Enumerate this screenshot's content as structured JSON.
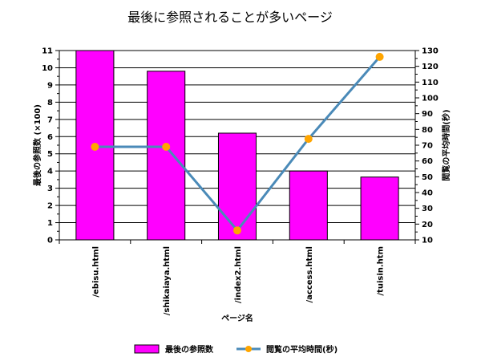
{
  "chart_data": {
    "type": "bar",
    "title": "最後に参照されることが多いページ",
    "xlabel": "ページ名",
    "ylabel": "最後の参照数 (×100)",
    "y2label": "閲覧の平均時間(秒)",
    "categories": [
      "/ebisu.html",
      "/shikaiaya.html",
      "/index2.html",
      "/access.html",
      "/tuisin.htm"
    ],
    "ylim": [
      0,
      11
    ],
    "y2lim": [
      10,
      130
    ],
    "y_ticks": [
      "0",
      "1",
      "2",
      "3",
      "4",
      "5",
      "6",
      "7",
      "8",
      "9",
      "10",
      "11"
    ],
    "y2_ticks": [
      "10",
      "20",
      "30",
      "40",
      "50",
      "60",
      "70",
      "80",
      "90",
      "100",
      "110",
      "120",
      "130"
    ],
    "grid": true,
    "legend_position": "bottom",
    "series": [
      {
        "name": "最後の参照数",
        "type": "bar",
        "axis": "left",
        "color": "#ff00ff",
        "values": [
          11.0,
          9.8,
          6.2,
          4.0,
          3.65
        ]
      },
      {
        "name": "閲覧の平均時間(秒)",
        "type": "line",
        "axis": "right",
        "color": "#4a8ab8",
        "marker_color": "#ffa500",
        "values": [
          69,
          69,
          16,
          74,
          126
        ]
      }
    ]
  }
}
